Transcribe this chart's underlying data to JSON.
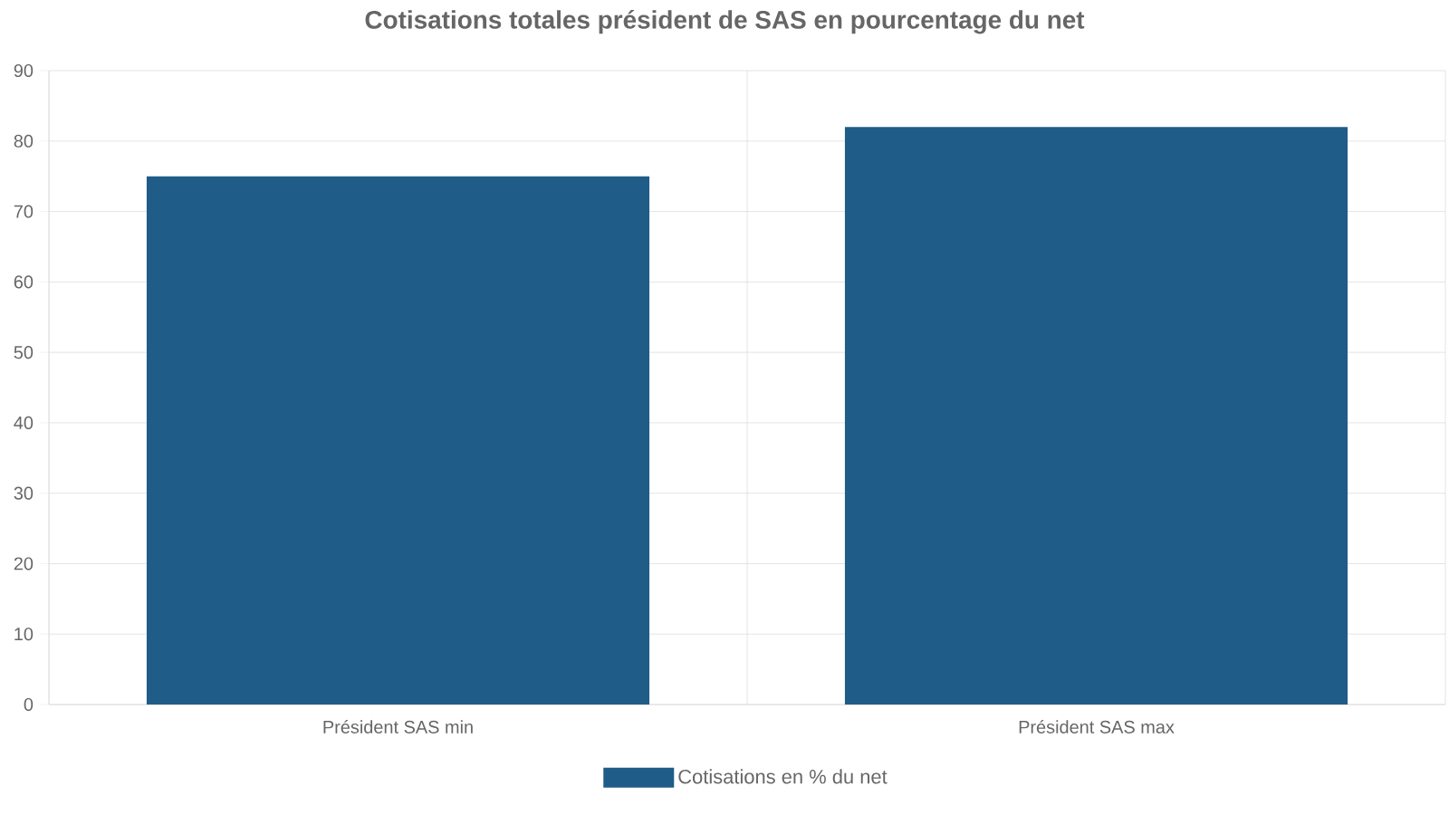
{
  "chart_data": {
    "type": "bar",
    "title": "Cotisations totales président de SAS en pourcentage du net",
    "categories": [
      "Président SAS min",
      "Président SAS max"
    ],
    "series": [
      {
        "name": "Cotisations en % du net",
        "color": "#1f5c87",
        "values": [
          75,
          82
        ]
      }
    ],
    "ylim": [
      0,
      90
    ],
    "yticks": [
      0,
      10,
      20,
      30,
      40,
      50,
      60,
      70,
      80,
      90
    ],
    "grid": true,
    "legend": "bottom"
  }
}
